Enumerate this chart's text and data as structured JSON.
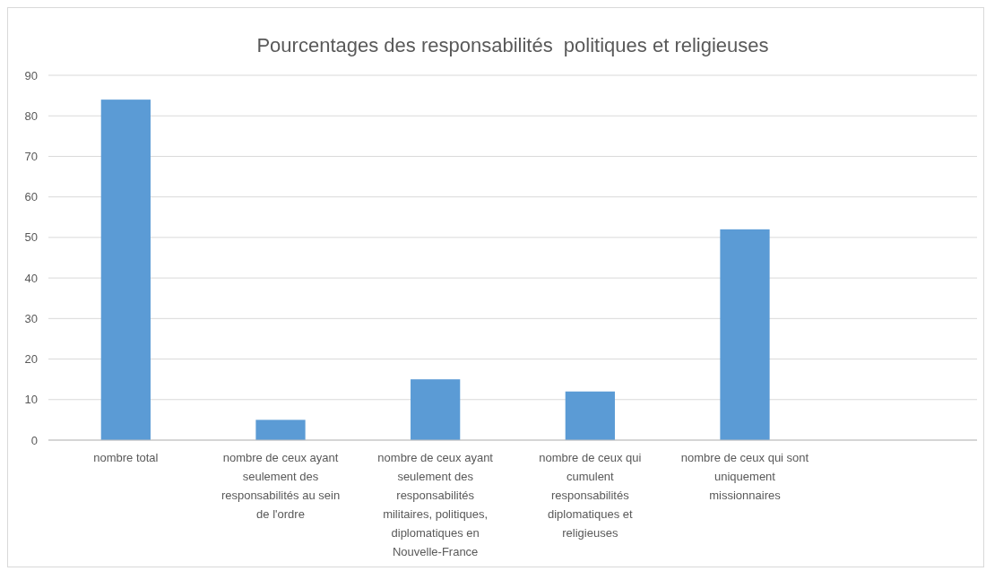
{
  "chart_data": {
    "type": "bar",
    "title": "Pourcentages des responsabilités  politiques et religieuses",
    "categories": [
      "nombre total",
      "nombre de ceux ayant seulement des responsabilités au sein de l'ordre",
      "nombre de ceux ayant seulement des responsabilités militaires, politiques, diplomatiques en Nouvelle-France",
      "nombre de ceux qui cumulent responsabilités diplomatiques et religieuses",
      "nombre de ceux qui sont uniquement missionnaires",
      null
    ],
    "values": [
      84,
      5,
      15,
      12,
      52,
      null
    ],
    "color": "#5b9bd5",
    "ylim": [
      0,
      90
    ],
    "yticks": [
      0,
      10,
      20,
      30,
      40,
      50,
      60,
      70,
      80,
      90
    ],
    "grid": "y"
  }
}
